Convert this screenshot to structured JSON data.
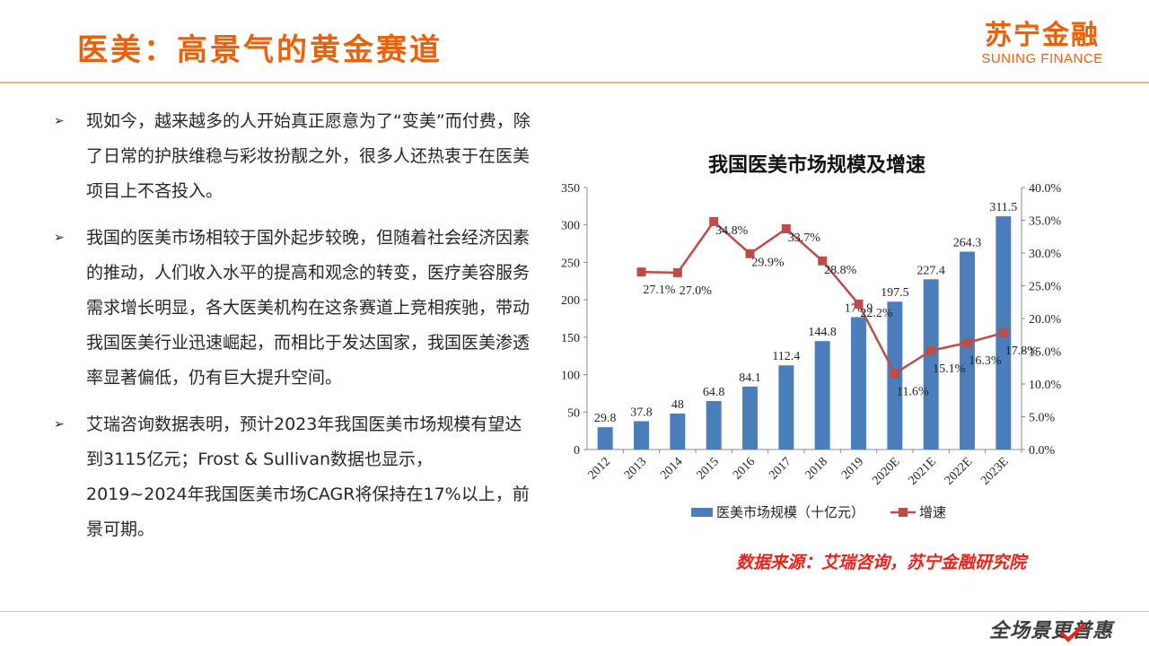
{
  "header": {
    "title": "医美：高景气的黄金赛道",
    "logo_cn": "苏宁金融",
    "logo_en": "SUNING FINANCE"
  },
  "bullets": [
    {
      "icon": "arrow-bullet-icon",
      "mark": "➢",
      "text": "现如今，越来越多的人开始真正愿意为了“变美”而付费，除了日常的护肤维稳与彩妆扮靓之外，很多人还热衷于在医美项目上不吝投入。"
    },
    {
      "icon": "arrow-bullet-icon",
      "mark": "➢",
      "text": "我国的医美市场相较于国外起步较晚，但随着社会经济因素的推动，人们收入水平的提高和观念的转变，医疗美容服务需求增长明显，各大医美机构在这条赛道上竞相疾驰，带动我国医美行业迅速崛起，而相比于发达国家，我国医美渗透率显著偏低，仍有巨大提升空间。"
    },
    {
      "icon": "arrow-bullet-icon",
      "mark": "➢",
      "text": "艾瑞咨询数据表明，预计2023年我国医美市场规模有望达到3115亿元；Frost & Sullivan数据也显示，2019~2024年我国医美市场CAGR将保持在17%以上，前景可期。"
    }
  ],
  "source": "数据来源：艾瑞咨询，苏宁金融研究院",
  "footer": {
    "slogan": "全场景更普惠"
  },
  "colors": {
    "accent": "#e8620e",
    "bar": "#4a7ebb",
    "line": "#be4b48",
    "source": "#e8231c"
  },
  "chart_data": {
    "type": "bar",
    "title": "我国医美市场规模及增速",
    "categories": [
      "2012",
      "2013",
      "2014",
      "2015",
      "2016",
      "2017",
      "2018",
      "2019",
      "2020E",
      "2021E",
      "2022E",
      "2023E"
    ],
    "series": [
      {
        "name": "医美市场规模（十亿元）",
        "type": "bar",
        "axis": "left",
        "values": [
          29.8,
          37.8,
          48,
          64.8,
          84.1,
          112.4,
          144.8,
          176.9,
          197.5,
          227.4,
          264.3,
          311.5
        ],
        "labels": [
          "29.8",
          "37.8",
          "48",
          "64.8",
          "84.1",
          "112.4",
          "144.8",
          "176.9",
          "197.5",
          "227.4",
          "264.3",
          "311.5"
        ]
      },
      {
        "name": "增速",
        "type": "line",
        "axis": "right",
        "marker": "square",
        "values": [
          null,
          27.1,
          27.0,
          34.8,
          29.9,
          33.7,
          28.8,
          22.2,
          11.6,
          15.1,
          16.3,
          17.8
        ],
        "labels": [
          null,
          "27.1%",
          "27.0%",
          "34.8%",
          "29.9%",
          "33.7%",
          "28.8%",
          "22.2%",
          "11.6%",
          "15.1%",
          "16.3%",
          "17.8%"
        ]
      }
    ],
    "y_left": {
      "range": [
        0,
        350
      ],
      "ticks": [
        "0",
        "50",
        "100",
        "150",
        "200",
        "250",
        "300",
        "350"
      ]
    },
    "y_right": {
      "range": [
        0,
        40
      ],
      "ticks": [
        "0.0%",
        "5.0%",
        "10.0%",
        "15.0%",
        "20.0%",
        "25.0%",
        "30.0%",
        "35.0%",
        "40.0%"
      ]
    },
    "grid": false,
    "legend_position": "bottom"
  }
}
